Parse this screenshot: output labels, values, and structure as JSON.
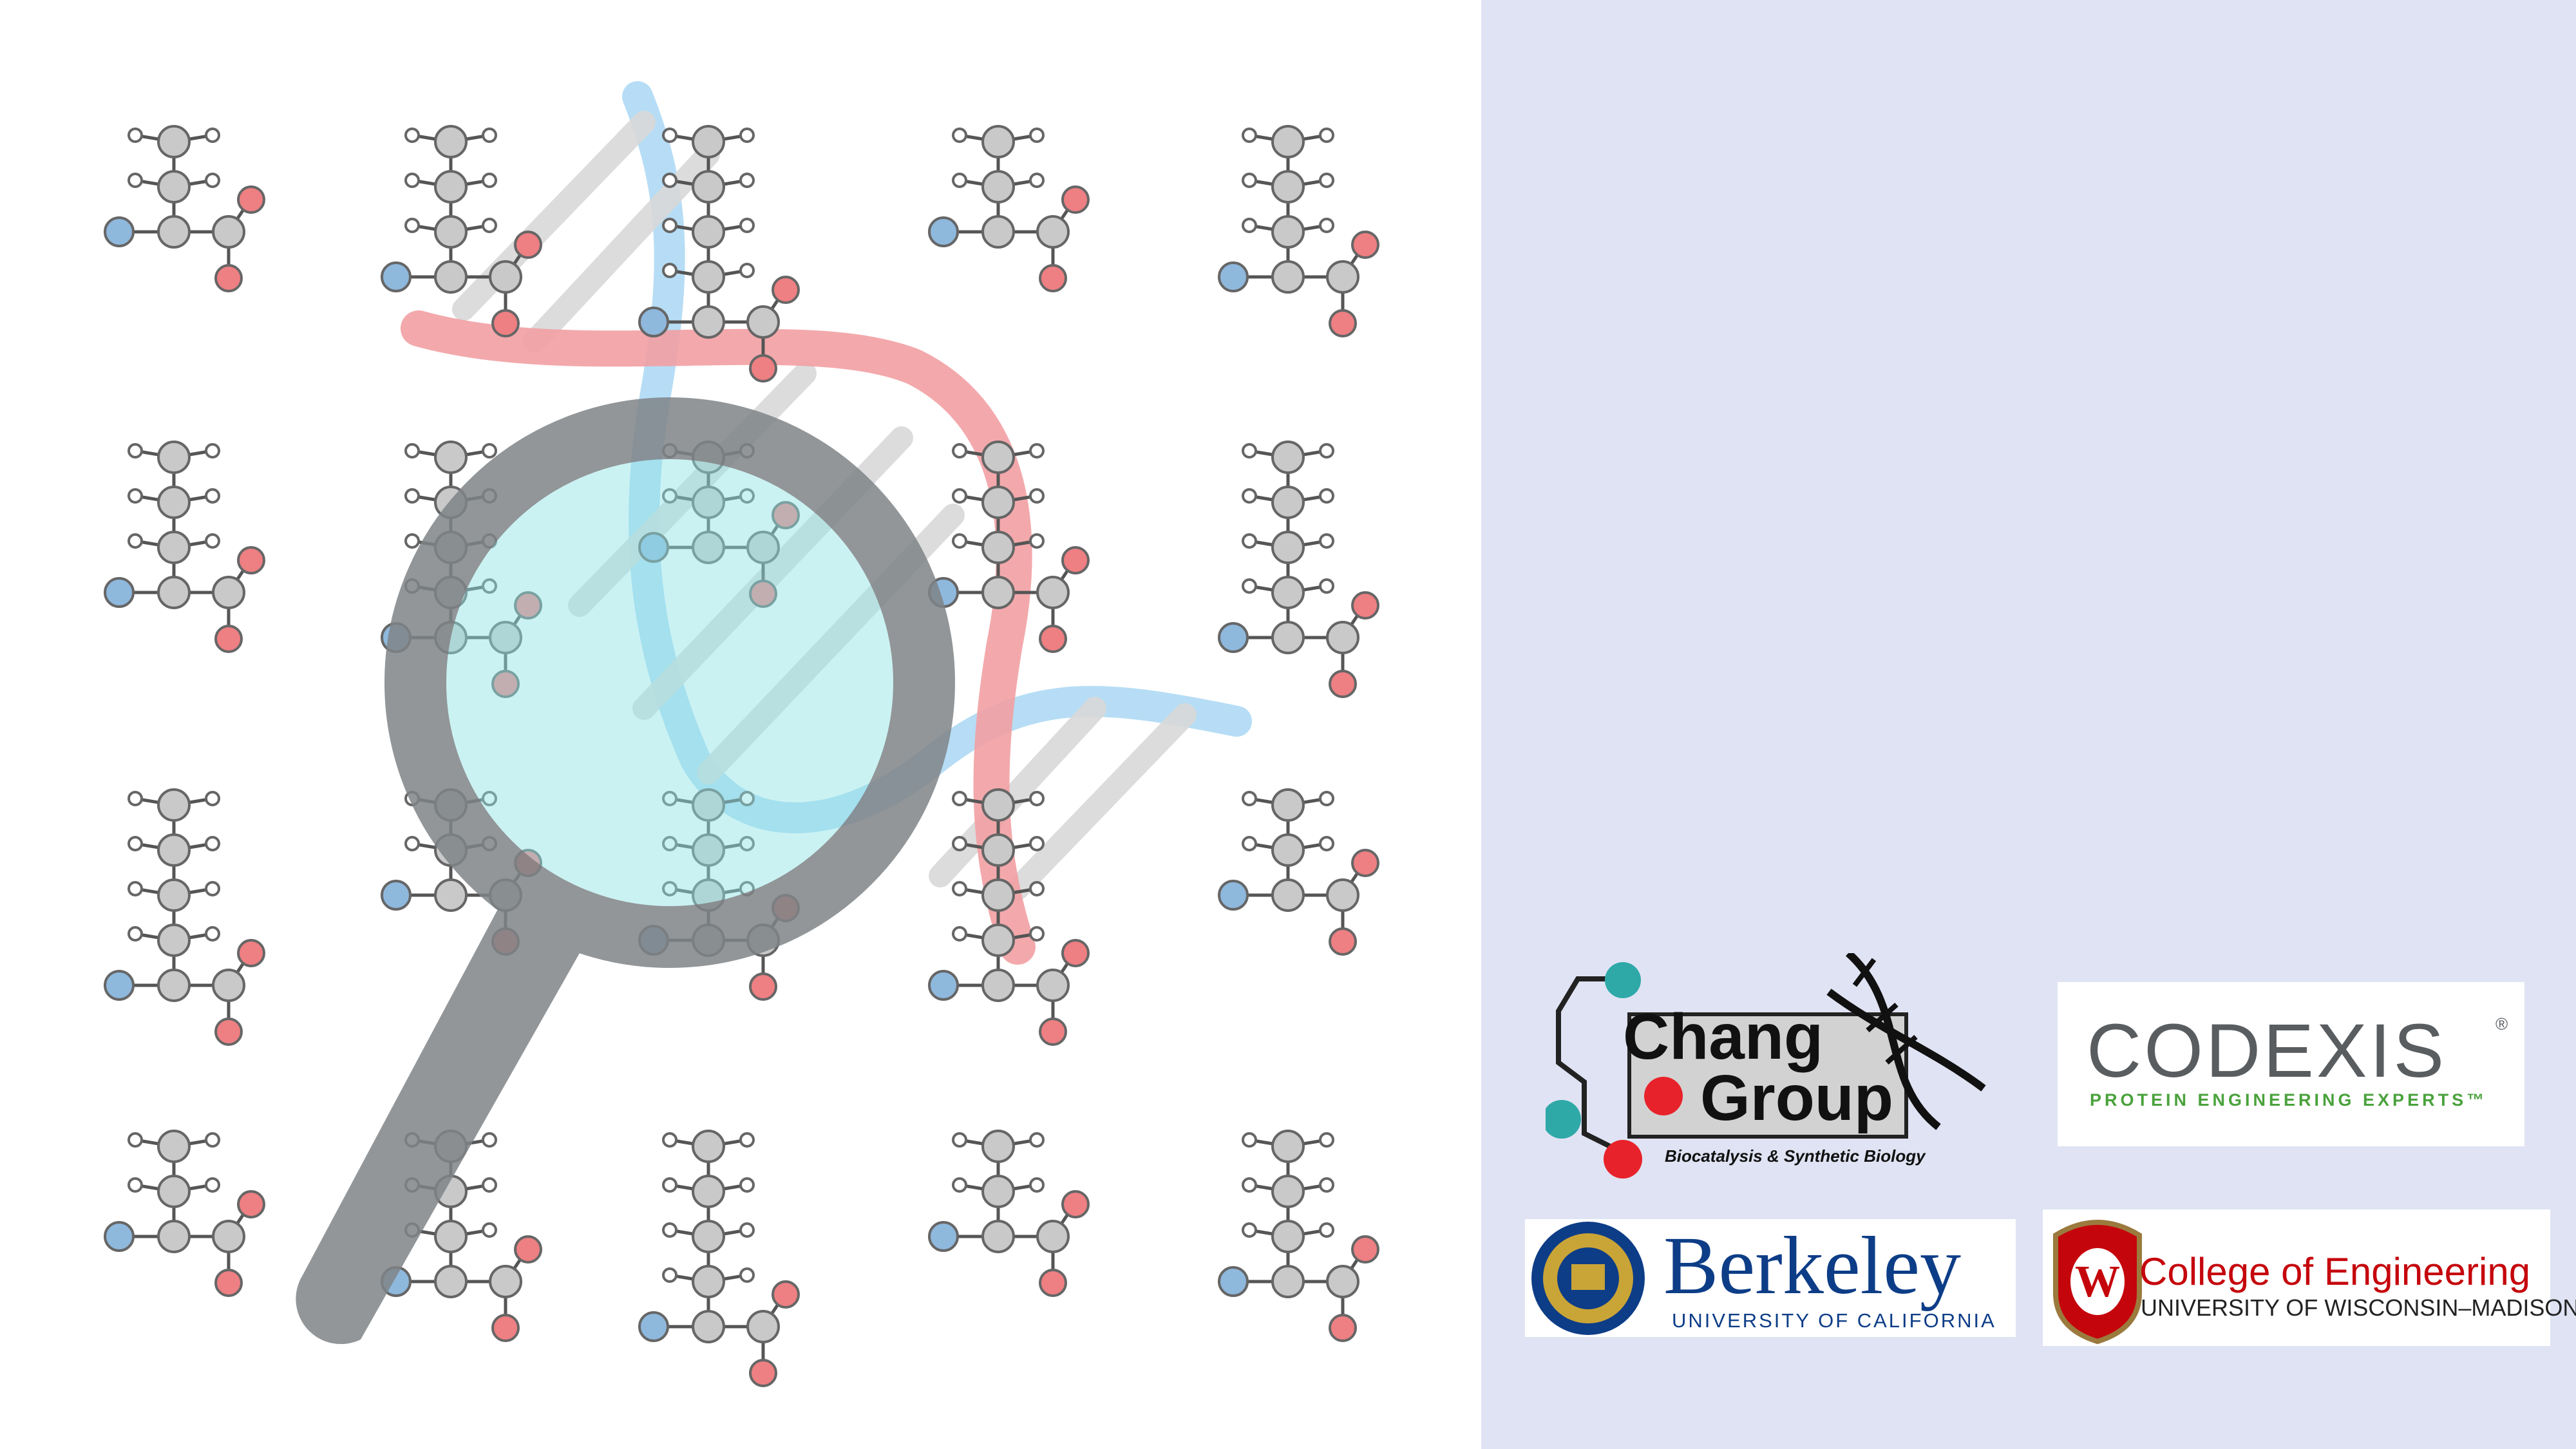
{
  "colors": {
    "panel_bg": "#dfe3f3",
    "atom_gray": "#c9c9c9",
    "atom_blue": "#8fb8dd",
    "atom_red": "#ee7f82",
    "atom_teal": "#2fa8a8",
    "atom_red_dark": "#e8222a",
    "helix_red": "#f2a0a3",
    "helix_blue": "#a9d7f3",
    "lens_tint": "#8fe3e6",
    "magnifier": "#7f8487",
    "codexis_gray": "#5a5d60",
    "codexis_green": "#4aa23c",
    "berkeley_blue": "#0d3d87",
    "berkeley_gold": "#c9a437",
    "wisc_red": "#c5050c"
  },
  "illustration": {
    "description_icons": [
      "molecule-grid-icon",
      "dna-helix-icon",
      "magnifying-glass-icon"
    ]
  },
  "logos": {
    "chang": {
      "title_line1": "Chang",
      "title_line2": "Group",
      "subtitle": "Biocatalysis & Synthetic Biology"
    },
    "codexis": {
      "name": "CODEXIS",
      "tagline": "PROTEIN ENGINEERING EXPERTS™"
    },
    "berkeley": {
      "name": "Berkeley",
      "subtitle": "UNIVERSITY OF CALIFORNIA"
    },
    "wisconsin": {
      "name": "College of Engineering",
      "subtitle": "UNIVERSITY OF WISCONSIN–MADISON"
    }
  }
}
